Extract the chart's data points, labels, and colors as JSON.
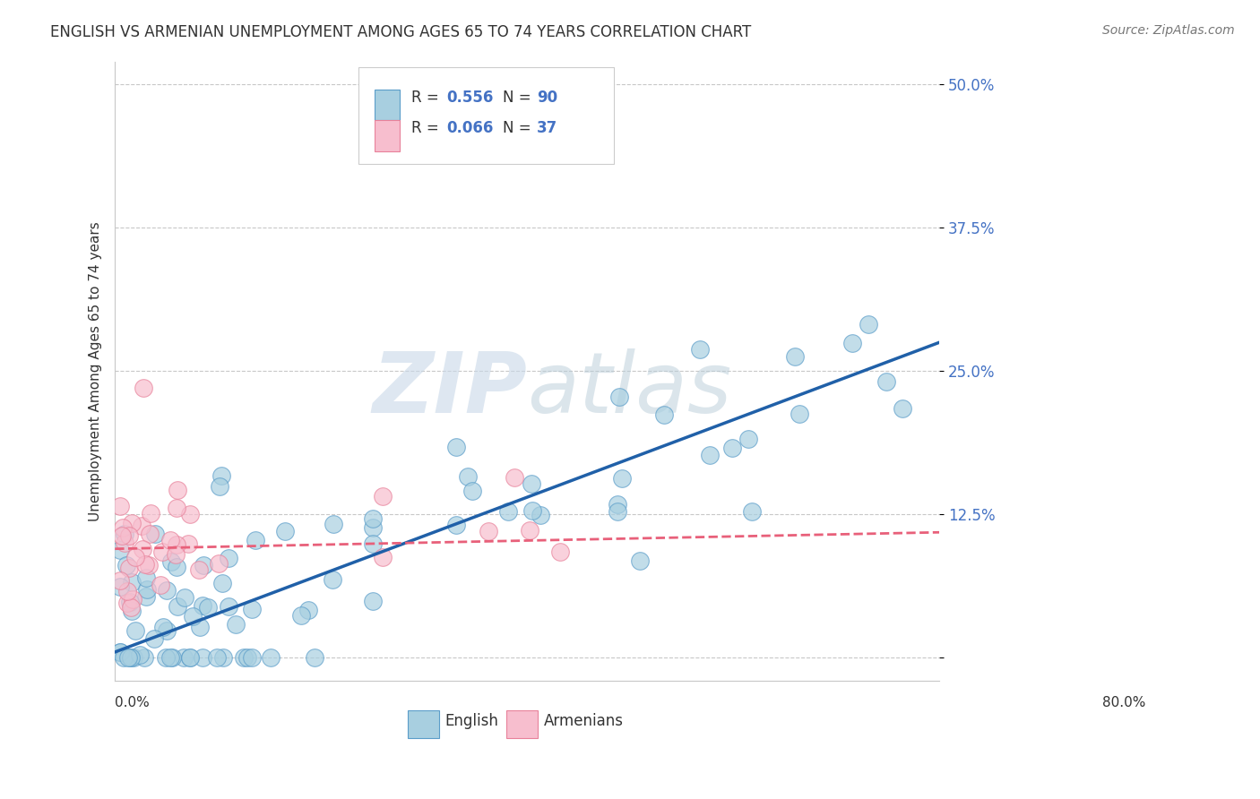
{
  "title": "ENGLISH VS ARMENIAN UNEMPLOYMENT AMONG AGES 65 TO 74 YEARS CORRELATION CHART",
  "source": "Source: ZipAtlas.com",
  "ylabel": "Unemployment Among Ages 65 to 74 years",
  "xlim": [
    0.0,
    0.8
  ],
  "ylim": [
    -0.02,
    0.52
  ],
  "yticks": [
    0.0,
    0.125,
    0.25,
    0.375,
    0.5
  ],
  "ytick_labels": [
    "",
    "12.5%",
    "25.0%",
    "37.5%",
    "50.0%"
  ],
  "english_R": 0.556,
  "english_N": 90,
  "armenian_R": 0.066,
  "armenian_N": 37,
  "english_color": "#a8cfe0",
  "english_edge_color": "#5b9dc9",
  "armenian_color": "#f7bece",
  "armenian_edge_color": "#e8819a",
  "english_line_color": "#2060a8",
  "armenian_line_color": "#e8607a",
  "background_color": "#ffffff",
  "grid_color": "#c8c8c8",
  "watermark_color": "#dce8f0",
  "legend_english": "English",
  "legend_armenian": "Armenians",
  "eng_slope": 0.3375,
  "eng_intercept": 0.005,
  "arm_slope": 0.018,
  "arm_intercept": 0.095
}
